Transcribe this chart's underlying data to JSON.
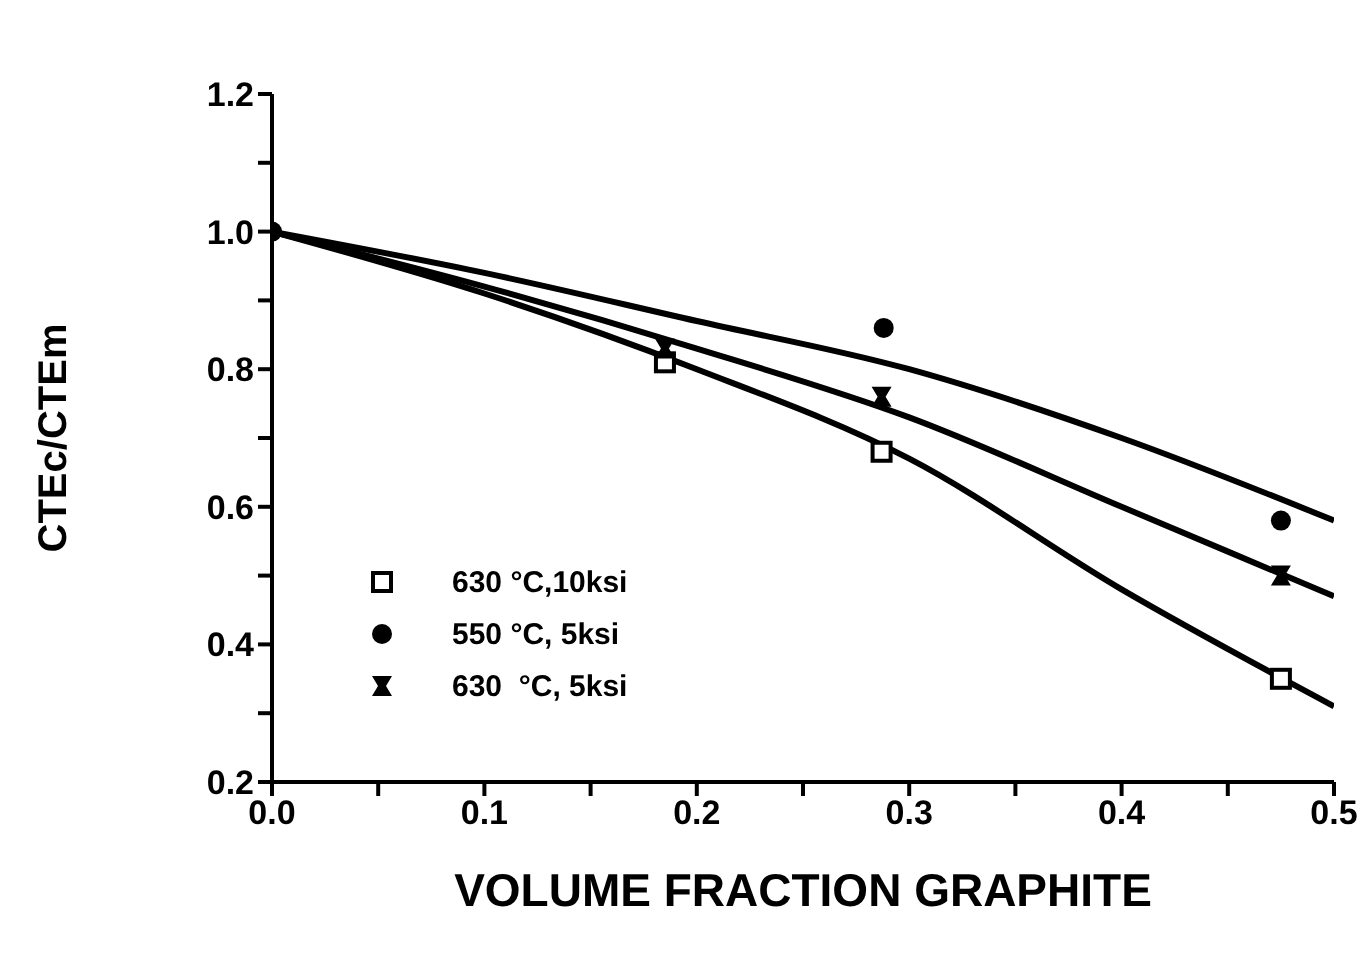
{
  "chart_data": {
    "type": "scatter",
    "xlabel": "VOLUME FRACTION GRAPHITE",
    "ylabel": "CTEc/CTEm",
    "xlim": [
      0,
      0.5
    ],
    "ylim": [
      0.2,
      1.2
    ],
    "xticks": [
      {
        "value": 0,
        "label": "0.0"
      },
      {
        "value": 0.05,
        "label": null
      },
      {
        "value": 0.1,
        "label": "0.1"
      },
      {
        "value": 0.15,
        "label": null
      },
      {
        "value": 0.2,
        "label": "0.2"
      },
      {
        "value": 0.25,
        "label": null
      },
      {
        "value": 0.3,
        "label": "0.3"
      },
      {
        "value": 0.35,
        "label": null
      },
      {
        "value": 0.4,
        "label": "0.4"
      },
      {
        "value": 0.45,
        "label": null
      },
      {
        "value": 0.5,
        "label": "0.5"
      }
    ],
    "yticks": [
      {
        "value": 0.2,
        "label": "0.2"
      },
      {
        "value": 0.3,
        "label": null
      },
      {
        "value": 0.4,
        "label": "0.4"
      },
      {
        "value": 0.5,
        "label": null
      },
      {
        "value": 0.6,
        "label": "0.6"
      },
      {
        "value": 0.7,
        "label": null
      },
      {
        "value": 0.8,
        "label": "0.8"
      },
      {
        "value": 0.9,
        "label": null
      },
      {
        "value": 1.0,
        "label": "1.0"
      },
      {
        "value": 1.1,
        "label": null
      },
      {
        "value": 1.2,
        "label": "1.2"
      }
    ],
    "grid": false,
    "legend": "bottom left",
    "series": [
      {
        "name": "630 °C,10ksi",
        "marker": "square",
        "color": "#000000",
        "x": [
          0.185,
          0.287,
          0.475
        ],
        "values": [
          0.81,
          0.68,
          0.35
        ]
      },
      {
        "name": "550 °C, 5ksi",
        "marker": "circle",
        "color": "#000000",
        "x": [
          0,
          0.288,
          0.475
        ],
        "values": [
          1.0,
          0.86,
          0.58
        ]
      },
      {
        "name": "630  °C, 5ksi",
        "marker": "cross",
        "color": "#000000",
        "x": [
          0.185,
          0.287,
          0.475
        ],
        "values": [
          0.83,
          0.76,
          0.5
        ]
      },
      {
        "type": "line",
        "color": "#000000",
        "x": [
          0,
          0.1,
          0.2,
          0.3,
          0.4,
          0.5
        ],
        "values": [
          1.0,
          0.91,
          0.8,
          0.67,
          0.48,
          0.31
        ]
      },
      {
        "type": "line",
        "color": "#000000",
        "x": [
          0,
          0.1,
          0.2,
          0.3,
          0.4,
          0.5
        ],
        "values": [
          1.0,
          0.92,
          0.83,
          0.73,
          0.6,
          0.47
        ]
      },
      {
        "type": "line",
        "color": "#000000",
        "x": [
          0,
          0.1,
          0.2,
          0.3,
          0.4,
          0.5
        ],
        "values": [
          1.0,
          0.94,
          0.87,
          0.8,
          0.7,
          0.58
        ]
      }
    ]
  }
}
